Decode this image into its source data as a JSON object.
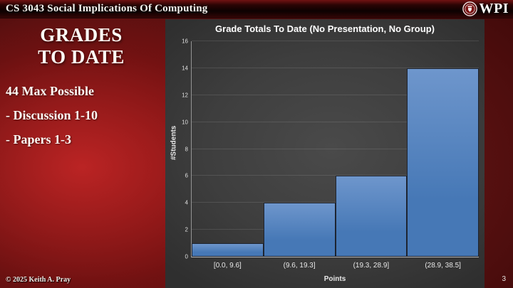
{
  "header": {
    "title": "CS 3043 Social Implications Of Computing",
    "logo_text": "WPI",
    "logo_icon": "wpi-seal-icon"
  },
  "sidebar": {
    "title_line1": "GRADES",
    "title_line2": "TO DATE",
    "items": [
      "44 Max Possible",
      "- Discussion 1-10",
      "- Papers 1-3"
    ]
  },
  "chart_data": {
    "type": "bar",
    "title": "Grade Totals To Date (No Presentation, No Group)",
    "categories": [
      "[0.0, 9.6]",
      "(9.6, 19.3]",
      "(19.3, 28.9]",
      "(28.9, 38.5]"
    ],
    "values": [
      1,
      4,
      6,
      14
    ],
    "xlabel": "Points",
    "ylabel": "#Students",
    "ylim": [
      0,
      16
    ],
    "ytick_step": 2,
    "grid": true,
    "legend": "none",
    "bar_style": "contiguous-histogram"
  },
  "colors": {
    "bar_fill": "#4678b6",
    "bar_fill_light": "#6e96cc",
    "bar_border": "#1d2431",
    "panel_bg": "#3e3e3e",
    "slide_red": "#7d1212",
    "gridline": "rgba(255,255,255,0.11)"
  },
  "footer": {
    "copyright": "© 2025 Keith A. Pray",
    "page_number": "3"
  }
}
